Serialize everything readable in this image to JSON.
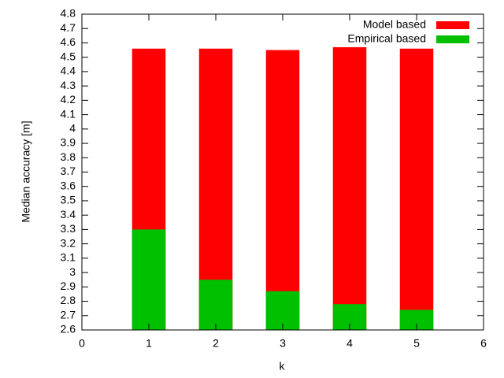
{
  "chart_data": {
    "type": "bar",
    "x_label": "k",
    "y_label": "Median accuracy [m]",
    "x": [
      1,
      2,
      3,
      4,
      5
    ],
    "series": [
      {
        "name": "Model based",
        "color": "#ff0000",
        "values": [
          4.56,
          4.56,
          4.55,
          4.57,
          4.56
        ]
      },
      {
        "name": "Empirical based",
        "color": "#00c000",
        "values": [
          3.3,
          2.95,
          2.87,
          2.78,
          2.74
        ]
      }
    ],
    "bar_width": 0.5,
    "xlim": [
      0,
      6
    ],
    "xticks": [
      0,
      1,
      2,
      3,
      4,
      5,
      6
    ],
    "ylim": [
      2.6,
      4.8
    ],
    "yticks": [
      2.6,
      2.7,
      2.8,
      2.9,
      3,
      3.1,
      3.2,
      3.3,
      3.4,
      3.5,
      3.6,
      3.7,
      3.8,
      3.9,
      4,
      4.1,
      4.2,
      4.3,
      4.4,
      4.5,
      4.6,
      4.7,
      4.8
    ],
    "legend": "top-right",
    "grid": false
  }
}
